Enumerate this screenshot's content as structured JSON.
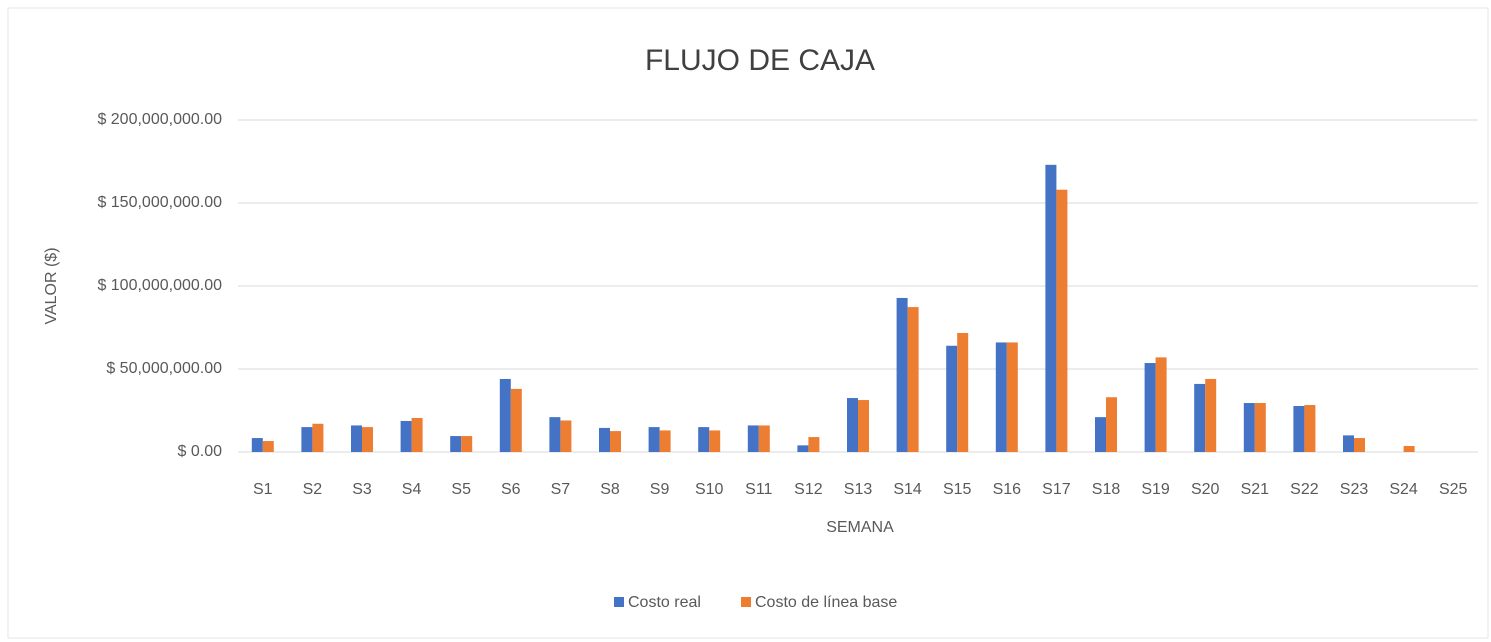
{
  "chart_data": {
    "type": "bar",
    "title": "FLUJO DE CAJA",
    "x_label": "SEMANA",
    "y_label": "VALOR ($)",
    "categories": [
      "S1",
      "S2",
      "S3",
      "S4",
      "S5",
      "S6",
      "S7",
      "S8",
      "S9",
      "S10",
      "S11",
      "S12",
      "S13",
      "S14",
      "S15",
      "S16",
      "S17",
      "S18",
      "S19",
      "S20",
      "S21",
      "S22",
      "S23",
      "S24",
      "S25"
    ],
    "series": [
      {
        "name": "Costo real",
        "color": "#4472c4",
        "values": [
          8400000,
          15000000,
          16000000,
          18700000,
          9600000,
          44000000,
          21000000,
          14500000,
          15000000,
          15000000,
          16000000,
          4000000,
          32500000,
          92800000,
          64000000,
          66000000,
          173000000,
          21000000,
          53600000,
          41000000,
          29500000,
          27700000,
          10000000,
          0,
          0
        ]
      },
      {
        "name": "Costo de línea base",
        "color": "#ed7d31",
        "values": [
          6600000,
          17000000,
          15000000,
          20500000,
          9600000,
          38000000,
          19000000,
          12600000,
          13000000,
          13000000,
          16000000,
          9000000,
          31300000,
          87300000,
          71700000,
          66000000,
          158000000,
          33000000,
          57000000,
          44000000,
          29500000,
          28300000,
          8400000,
          3600000,
          0
        ]
      }
    ],
    "ylim": [
      0,
      200000000
    ],
    "yticks": [
      {
        "value": 0,
        "label": "$ 0.00"
      },
      {
        "value": 50000000,
        "label": "$ 50,000,000.00"
      },
      {
        "value": 100000000,
        "label": "$ 100,000,000.00"
      },
      {
        "value": 150000000,
        "label": "$ 150,000,000.00"
      },
      {
        "value": 200000000,
        "label": "$ 200,000,000.00"
      }
    ],
    "grid": true,
    "legend": "bottom"
  }
}
